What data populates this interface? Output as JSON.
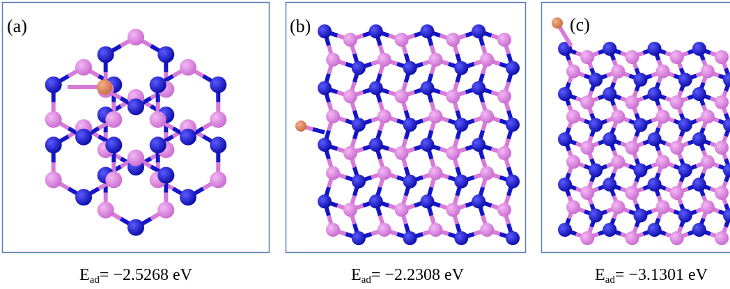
{
  "panels": [
    {
      "label": "(a)",
      "caption": {
        "symbol": "E",
        "subscript": "ad",
        "text": "= −2.5268 eV"
      }
    },
    {
      "label": "(b)",
      "caption": {
        "symbol": "E",
        "subscript": "ad",
        "text": "= −2.2308 eV"
      }
    },
    {
      "label": "(c)",
      "caption": {
        "symbol": "E",
        "subscript": "ad",
        "text": "= −3.1301 eV"
      }
    }
  ]
}
